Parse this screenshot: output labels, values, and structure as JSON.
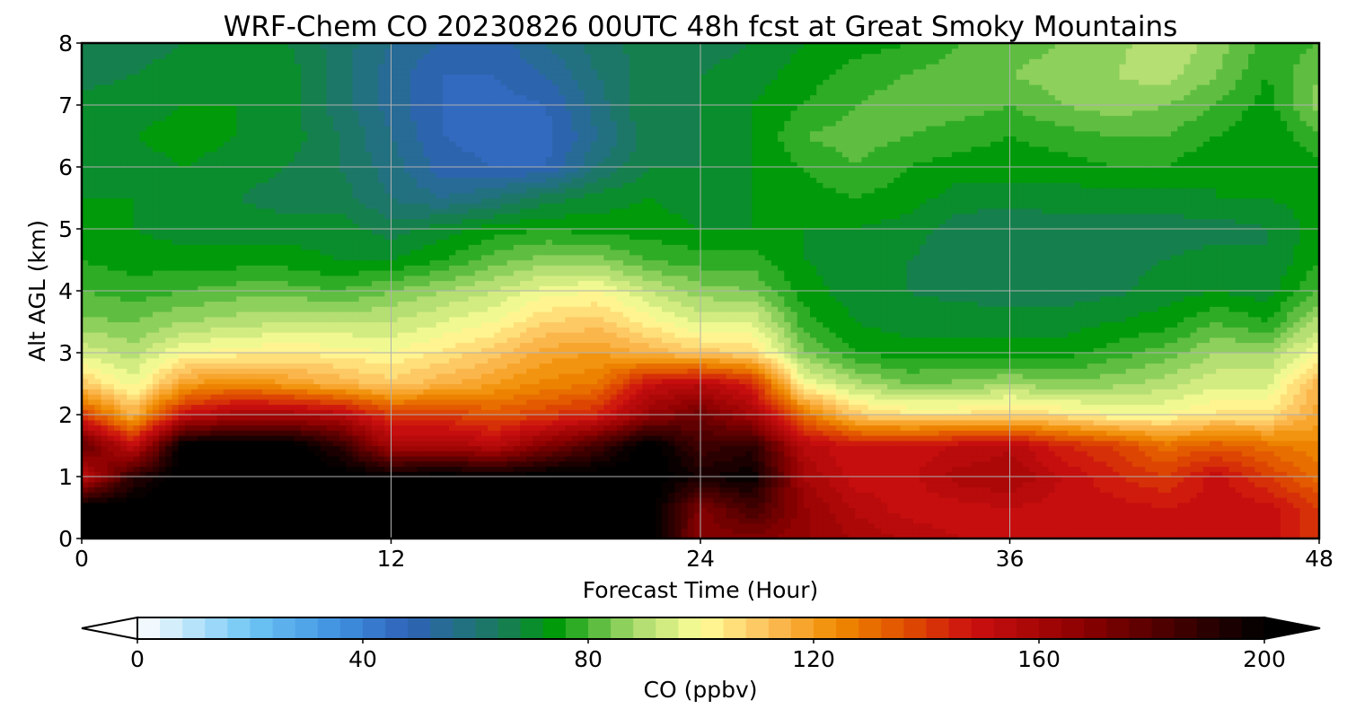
{
  "chart_data": {
    "type": "heatmap",
    "title": "WRF-Chem CO  20230826 00UTC 48h fcst at Great Smoky Mountains",
    "xlabel": "Forecast Time (Hour)",
    "ylabel": "Alt AGL (km)",
    "xlim": [
      0,
      48
    ],
    "ylim": [
      0,
      8
    ],
    "xticks": [
      0,
      12,
      24,
      36,
      48
    ],
    "xtick_labels": [
      "0",
      "12",
      "24",
      "36",
      "48"
    ],
    "yticks": [
      0,
      1,
      2,
      3,
      4,
      5,
      6,
      7,
      8
    ],
    "ytick_labels": [
      "0",
      "1",
      "2",
      "3",
      "4",
      "5",
      "6",
      "7",
      "8"
    ],
    "grid": true,
    "colorbar": {
      "label": "CO  (ppbv)",
      "orientation": "horizontal",
      "placement": "bottom",
      "min": 0,
      "max": 200,
      "step": 4,
      "extend": "both",
      "ticks": [
        0,
        40,
        80,
        120,
        160,
        200
      ],
      "tick_labels": [
        "0",
        "40",
        "80",
        "120",
        "160",
        "200"
      ],
      "color_stops": [
        {
          "value": 0,
          "color": "#ffffff"
        },
        {
          "value": 20,
          "color": "#6ec6f5"
        },
        {
          "value": 36,
          "color": "#3e8fe0"
        },
        {
          "value": 48,
          "color": "#2f62b8"
        },
        {
          "value": 64,
          "color": "#1a7a5e"
        },
        {
          "value": 74,
          "color": "#009a0a"
        },
        {
          "value": 88,
          "color": "#a6d96a"
        },
        {
          "value": 100,
          "color": "#ffff99"
        },
        {
          "value": 112,
          "color": "#fdbe5a"
        },
        {
          "value": 124,
          "color": "#f08c00"
        },
        {
          "value": 136,
          "color": "#e05000"
        },
        {
          "value": 148,
          "color": "#cc1010"
        },
        {
          "value": 168,
          "color": "#8b0000"
        },
        {
          "value": 200,
          "color": "#000000"
        }
      ]
    },
    "times": [
      0,
      2,
      4,
      6,
      8,
      10,
      12,
      14,
      16,
      18,
      20,
      22,
      24,
      26,
      28,
      30,
      32,
      34,
      36,
      38,
      40,
      42,
      44,
      46,
      48
    ],
    "altitudes": [
      0,
      0.5,
      1,
      1.5,
      2,
      2.5,
      3,
      3.5,
      4,
      4.5,
      5,
      5.5,
      6,
      6.5,
      7,
      7.5,
      8
    ],
    "values": [
      [
        205,
        205,
        205,
        205,
        205,
        205,
        205,
        205,
        205,
        205,
        205,
        205,
        168,
        170,
        165,
        160,
        155,
        152,
        150,
        150,
        150,
        150,
        150,
        150,
        140
      ],
      [
        205,
        205,
        205,
        205,
        205,
        205,
        205,
        205,
        205,
        205,
        205,
        205,
        170,
        185,
        165,
        155,
        150,
        150,
        152,
        150,
        150,
        148,
        150,
        150,
        140
      ],
      [
        150,
        190,
        205,
        205,
        205,
        205,
        200,
        205,
        200,
        205,
        205,
        205,
        195,
        200,
        160,
        150,
        150,
        158,
        160,
        152,
        145,
        140,
        150,
        140,
        130
      ],
      [
        180,
        150,
        205,
        205,
        205,
        190,
        160,
        160,
        155,
        170,
        185,
        205,
        185,
        190,
        155,
        148,
        150,
        152,
        155,
        145,
        140,
        130,
        135,
        130,
        125
      ],
      [
        140,
        115,
        150,
        160,
        160,
        155,
        140,
        140,
        135,
        140,
        145,
        165,
        175,
        160,
        130,
        110,
        105,
        105,
        108,
        105,
        100,
        100,
        105,
        105,
        118
      ],
      [
        110,
        98,
        120,
        125,
        120,
        115,
        110,
        115,
        120,
        125,
        128,
        150,
        155,
        145,
        100,
        90,
        84,
        85,
        88,
        85,
        87,
        90,
        95,
        95,
        115
      ],
      [
        95,
        90,
        100,
        102,
        104,
        102,
        100,
        105,
        110,
        118,
        120,
        115,
        110,
        108,
        85,
        76,
        74,
        74,
        74,
        74,
        78,
        82,
        88,
        88,
        100
      ],
      [
        85,
        84,
        88,
        90,
        92,
        92,
        92,
        96,
        100,
        108,
        110,
        102,
        95,
        96,
        78,
        72,
        70,
        70,
        70,
        70,
        72,
        74,
        80,
        76,
        90
      ],
      [
        80,
        78,
        80,
        82,
        82,
        80,
        84,
        88,
        92,
        98,
        100,
        92,
        86,
        84,
        74,
        70,
        68,
        67,
        66,
        66,
        67,
        70,
        72,
        70,
        80
      ],
      [
        76,
        74,
        74,
        74,
        74,
        72,
        72,
        76,
        82,
        86,
        86,
        80,
        78,
        78,
        72,
        70,
        68,
        66,
        66,
        66,
        66,
        68,
        70,
        68,
        76
      ],
      [
        74,
        72,
        70,
        70,
        70,
        70,
        66,
        70,
        74,
        76,
        74,
        74,
        72,
        72,
        72,
        72,
        70,
        66,
        64,
        66,
        66,
        66,
        66,
        68,
        74
      ],
      [
        72,
        72,
        70,
        68,
        66,
        66,
        60,
        56,
        60,
        66,
        70,
        72,
        70,
        72,
        74,
        76,
        74,
        70,
        70,
        70,
        70,
        70,
        72,
        72,
        74
      ],
      [
        70,
        70,
        72,
        70,
        68,
        64,
        58,
        50,
        48,
        48,
        60,
        68,
        68,
        72,
        76,
        80,
        76,
        74,
        74,
        74,
        76,
        76,
        72,
        72,
        74
      ],
      [
        72,
        72,
        74,
        72,
        70,
        64,
        56,
        48,
        46,
        46,
        56,
        66,
        68,
        72,
        80,
        82,
        80,
        78,
        76,
        78,
        80,
        80,
        76,
        72,
        80
      ],
      [
        70,
        70,
        72,
        72,
        70,
        62,
        54,
        48,
        46,
        48,
        58,
        68,
        68,
        72,
        76,
        80,
        82,
        82,
        80,
        84,
        86,
        84,
        80,
        74,
        86
      ],
      [
        66,
        68,
        70,
        70,
        70,
        62,
        54,
        48,
        48,
        52,
        60,
        66,
        68,
        70,
        74,
        78,
        80,
        82,
        84,
        86,
        88,
        90,
        84,
        76,
        84
      ],
      [
        64,
        66,
        68,
        68,
        68,
        62,
        56,
        52,
        50,
        56,
        62,
        66,
        66,
        68,
        72,
        74,
        76,
        80,
        82,
        84,
        86,
        92,
        86,
        78,
        80
      ]
    ]
  }
}
